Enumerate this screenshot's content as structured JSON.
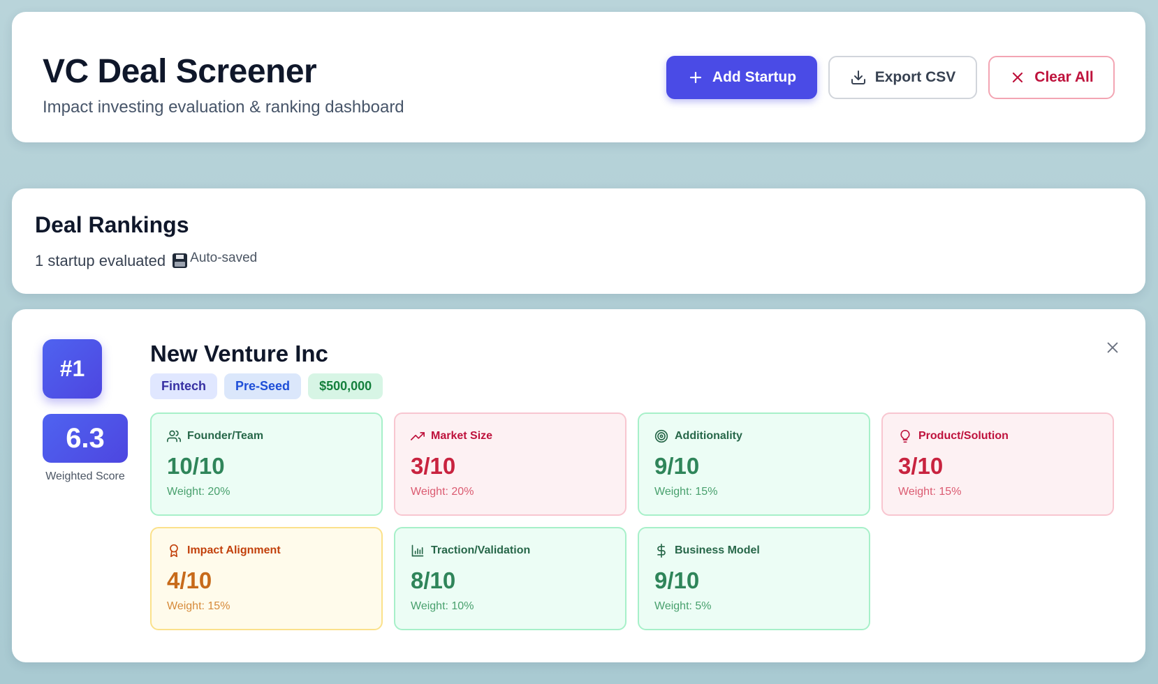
{
  "header": {
    "title": "VC Deal Screener",
    "subtitle": "Impact investing evaluation & ranking dashboard",
    "add_label": "Add Startup",
    "export_label": "Export CSV",
    "clear_label": "Clear All"
  },
  "rankings": {
    "title": "Deal Rankings",
    "count": "1 startup evaluated",
    "autosave": "Auto-saved"
  },
  "startup": {
    "rank": "#1",
    "score": "6.3",
    "score_label": "Weighted Score",
    "name": "New Venture Inc",
    "tags": {
      "sector": "Fintech",
      "stage": "Pre-Seed",
      "amount": "$500,000"
    },
    "metrics": [
      {
        "label": "Founder/Team",
        "score": "10/10",
        "weight": "Weight: 20%",
        "status": "green",
        "icon": "users-icon"
      },
      {
        "label": "Market Size",
        "score": "3/10",
        "weight": "Weight: 20%",
        "status": "red",
        "icon": "trending-up-icon"
      },
      {
        "label": "Additionality",
        "score": "9/10",
        "weight": "Weight: 15%",
        "status": "green",
        "icon": "target-icon"
      },
      {
        "label": "Product/Solution",
        "score": "3/10",
        "weight": "Weight: 15%",
        "status": "red",
        "icon": "lightbulb-icon"
      },
      {
        "label": "Impact Alignment",
        "score": "4/10",
        "weight": "Weight: 15%",
        "status": "amber",
        "icon": "award-icon"
      },
      {
        "label": "Traction/Validation",
        "score": "8/10",
        "weight": "Weight: 10%",
        "status": "green",
        "icon": "bar-chart-icon"
      },
      {
        "label": "Business Model",
        "score": "9/10",
        "weight": "Weight: 5%",
        "status": "green",
        "icon": "dollar-icon"
      }
    ]
  },
  "colors": {
    "primary": "#4a4be6",
    "good": "#2f855a",
    "bad": "#be123c",
    "medium": "#c2410c"
  }
}
